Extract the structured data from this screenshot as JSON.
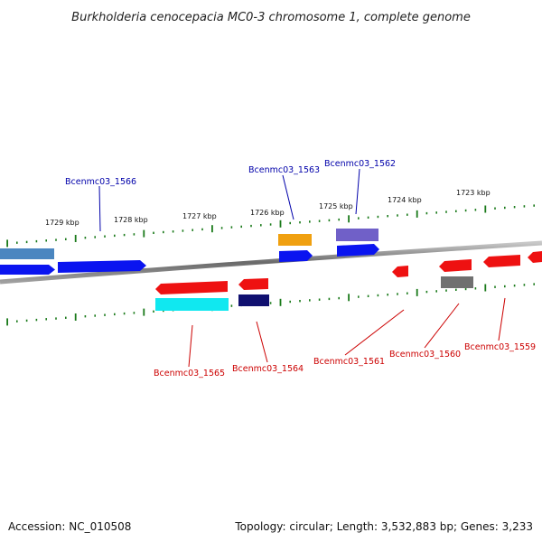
{
  "title": "Burkholderia cenocepacia MC0-3 chromosome 1, complete genome",
  "footer": {
    "accession": "Accession: NC_010508",
    "topology": "Topology: circular; Length: 3,532,883 bp; Genes: 3,233"
  },
  "kbp_labels": [
    {
      "text": "1729 kbp"
    },
    {
      "text": "1728 kbp"
    },
    {
      "text": "1727 kbp"
    },
    {
      "text": "1726 kbp"
    },
    {
      "text": "1725 kbp"
    },
    {
      "text": "1724 kbp"
    },
    {
      "text": "1723 kbp"
    }
  ],
  "gene_labels": {
    "forward": [
      "Bcenmc03_1566",
      "Bcenmc03_1563",
      "Bcenmc03_1562"
    ],
    "reverse": [
      "Bcenmc03_1565",
      "Bcenmc03_1564",
      "Bcenmc03_1561",
      "Bcenmc03_1560",
      "Bcenmc03_1559"
    ]
  },
  "colors": {
    "forward_label": "#0000aa",
    "reverse_label": "#cc0000",
    "tick": "#1a7a1a",
    "backbone": "#808080",
    "blue": "#0a14f0",
    "steel_blue": "#4a86c0",
    "orange": "#f0a010",
    "slate_blue": "#7060c8",
    "red": "#ee1111",
    "cyan": "#10e8f0",
    "navy": "#101070",
    "gray": "#707070"
  }
}
